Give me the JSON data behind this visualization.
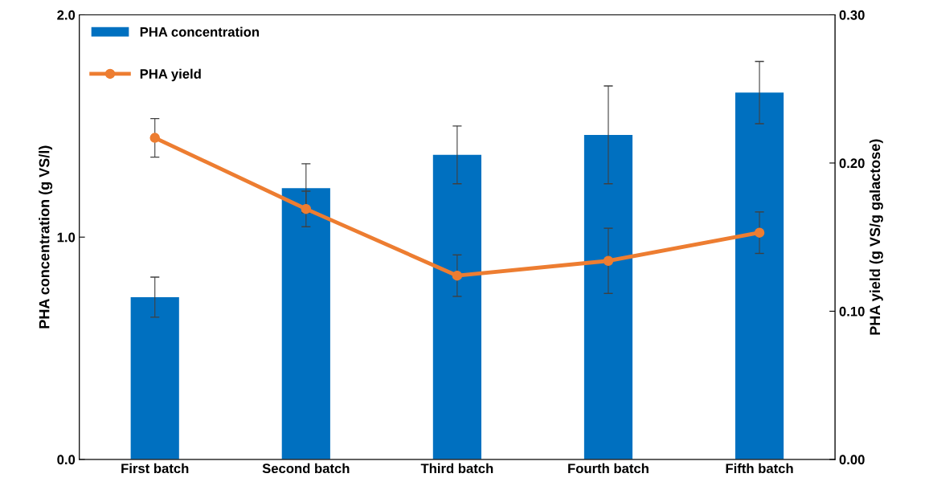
{
  "chart_data": {
    "type": "bar",
    "categories": [
      "First batch",
      "Second batch",
      "Third batch",
      "Fourth batch",
      "Fifth batch"
    ],
    "ylabel": "PHA concentration (g VS/l)",
    "y2label": "PHA yield (g VS/g galactose)",
    "ylim": [
      0,
      2.0
    ],
    "yticks": [
      {
        "value": 0,
        "label": "0.0"
      },
      {
        "value": 1,
        "label": "1.0"
      },
      {
        "value": 2,
        "label": "2.0"
      }
    ],
    "y2lim": [
      0,
      0.3
    ],
    "y2ticks": [
      {
        "value": 0,
        "label": "0.00"
      },
      {
        "value": 0.1,
        "label": "0.10"
      },
      {
        "value": 0.2,
        "label": "0.20"
      },
      {
        "value": 0.3,
        "label": "0.30"
      }
    ],
    "series": [
      {
        "name": "PHA concentration",
        "color": "#0070c0",
        "values": [
          0.73,
          1.22,
          1.37,
          1.46,
          1.65
        ],
        "errors": [
          0.09,
          0.11,
          0.13,
          0.22,
          0.14
        ]
      },
      {
        "name": "PHA yield",
        "type": "line",
        "axis": "y2",
        "color": "#ed7d31",
        "values": [
          0.217,
          0.169,
          0.124,
          0.134,
          0.153
        ],
        "errors": [
          0.013,
          0.012,
          0.014,
          0.022,
          0.014
        ]
      }
    ],
    "marker": "circle",
    "line_style": "solid",
    "grid": false,
    "legend": "top left"
  }
}
